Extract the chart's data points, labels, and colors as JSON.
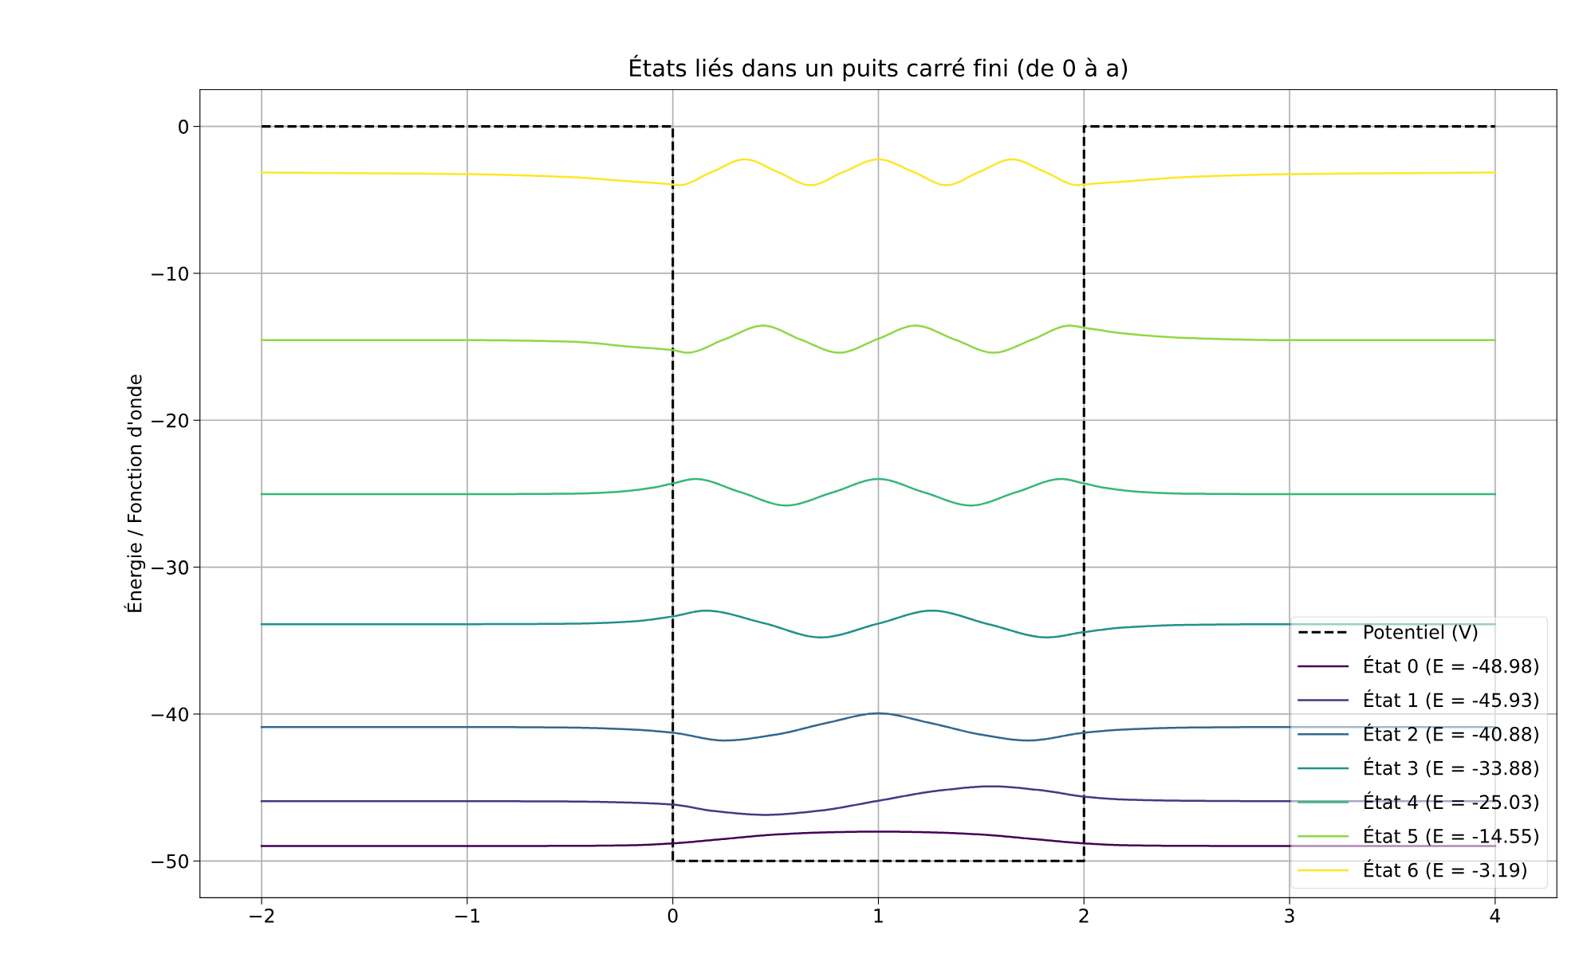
{
  "chart_data": {
    "type": "line",
    "title": "États liés dans un puits carré fini (de 0 à a)",
    "ylabel": "Énergie / Fonction d'onde",
    "xlim": [
      -2.3,
      4.3
    ],
    "xticks": [
      {
        "value": -2,
        "label": "−2"
      },
      {
        "value": -1,
        "label": "−1"
      },
      0,
      1,
      2,
      3,
      4
    ],
    "ylim": [
      -52.5,
      2.5
    ],
    "yticks": [
      {
        "value": -50,
        "label": "−50"
      },
      {
        "value": -40,
        "label": "−40"
      },
      {
        "value": -30,
        "label": "−30"
      },
      {
        "value": -20,
        "label": "−20"
      },
      {
        "value": -10,
        "label": "−10"
      },
      0
    ],
    "grid": true,
    "legend": "bottom right",
    "marker": "none",
    "series": [
      {
        "name": "Potentiel (V)",
        "color": "#000000",
        "line_style": "dashed",
        "x": [
          -2,
          0,
          0,
          2,
          2,
          4
        ],
        "values": [
          0,
          0,
          -50,
          -50,
          0,
          0
        ]
      },
      {
        "name": "État 0 (E = -48.98)",
        "color": "#440154",
        "line_style": "solid",
        "x": [
          -2,
          -1,
          -0.5,
          -0.2,
          0,
          0.25,
          0.5,
          0.75,
          1,
          1.25,
          1.5,
          1.75,
          2,
          2.2,
          2.5,
          3,
          4
        ],
        "values": [
          -48.98,
          -48.98,
          -48.97,
          -48.93,
          -48.8,
          -48.5,
          -48.2,
          -48.05,
          -48.0,
          -48.05,
          -48.2,
          -48.5,
          -48.8,
          -48.93,
          -48.97,
          -48.98,
          -48.98
        ]
      },
      {
        "name": "État 1 (E = -45.93)",
        "color": "#443983",
        "line_style": "solid",
        "x": [
          -2,
          -1,
          -0.5,
          -0.2,
          0,
          0.2,
          0.45,
          0.7,
          1,
          1.3,
          1.55,
          1.8,
          2,
          2.2,
          2.5,
          3,
          4
        ],
        "values": [
          -45.93,
          -45.93,
          -45.95,
          -46.03,
          -46.16,
          -46.6,
          -46.86,
          -46.6,
          -45.9,
          -45.2,
          -44.92,
          -45.2,
          -45.62,
          -45.82,
          -45.9,
          -45.93,
          -45.93
        ]
      },
      {
        "name": "État 2 (E = -40.88)",
        "color": "#31688e",
        "line_style": "solid",
        "x": [
          -2,
          -1,
          -0.5,
          -0.2,
          0,
          0.25,
          0.5,
          0.75,
          1,
          1.25,
          1.5,
          1.73,
          2,
          2.2,
          2.5,
          3,
          4
        ],
        "values": [
          -40.88,
          -40.88,
          -40.92,
          -41.05,
          -41.27,
          -41.8,
          -41.4,
          -40.6,
          -39.95,
          -40.6,
          -41.4,
          -41.8,
          -41.27,
          -41.05,
          -40.92,
          -40.88,
          -40.88
        ]
      },
      {
        "name": "État 3 (E = -33.88)",
        "color": "#21918c",
        "line_style": "solid",
        "x": [
          -2,
          -1,
          -0.5,
          -0.2,
          0,
          0.16,
          0.44,
          0.72,
          1,
          1.26,
          1.54,
          1.82,
          2,
          2.2,
          2.5,
          3,
          4
        ],
        "values": [
          -33.88,
          -33.88,
          -33.85,
          -33.7,
          -33.35,
          -32.96,
          -33.8,
          -34.78,
          -33.84,
          -32.96,
          -33.9,
          -34.78,
          -34.42,
          -34.1,
          -33.93,
          -33.88,
          -33.88
        ]
      },
      {
        "name": "État 4 (E = -25.03)",
        "color": "#35b779",
        "line_style": "solid",
        "x": [
          -2,
          -1,
          -0.5,
          -0.3,
          -0.1,
          0,
          0.11,
          0.33,
          0.55,
          0.78,
          1,
          1.22,
          1.45,
          1.67,
          1.89,
          2,
          2.1,
          2.3,
          2.5,
          3,
          4
        ],
        "values": [
          -25.03,
          -25.03,
          -25.0,
          -24.9,
          -24.6,
          -24.3,
          -24.0,
          -24.9,
          -25.8,
          -24.9,
          -24.0,
          -24.9,
          -25.8,
          -24.9,
          -24.0,
          -24.3,
          -24.6,
          -24.9,
          -25.0,
          -25.03,
          -25.03
        ]
      },
      {
        "name": "État 5 (E = -14.55)",
        "color": "#90d743",
        "line_style": "solid",
        "x": [
          -2,
          -1,
          -0.5,
          -0.2,
          0,
          0.07,
          0.25,
          0.44,
          0.62,
          0.81,
          1,
          1.18,
          1.37,
          1.56,
          1.75,
          1.93,
          2,
          2.2,
          2.5,
          3,
          4
        ],
        "values": [
          -14.55,
          -14.55,
          -14.65,
          -15.0,
          -15.23,
          -15.4,
          -14.5,
          -13.56,
          -14.5,
          -15.4,
          -14.45,
          -13.56,
          -14.5,
          -15.4,
          -14.5,
          -13.56,
          -13.7,
          -14.1,
          -14.4,
          -14.55,
          -14.55
        ]
      },
      {
        "name": "État 6 (E = -3.19)",
        "color": "#fde725",
        "line_style": "solid",
        "x": [
          -2,
          -1,
          -0.5,
          -0.2,
          0,
          0.03,
          0.19,
          0.35,
          0.51,
          0.67,
          0.83,
          1,
          1.17,
          1.33,
          1.49,
          1.65,
          1.81,
          1.97,
          2,
          2.2,
          2.5,
          3,
          4
        ],
        "values": [
          -3.14,
          -3.25,
          -3.45,
          -3.75,
          -3.95,
          -4.0,
          -3.1,
          -2.24,
          -3.1,
          -4.0,
          -3.1,
          -2.24,
          -3.1,
          -4.0,
          -3.1,
          -2.24,
          -3.1,
          -4.0,
          -3.95,
          -3.75,
          -3.45,
          -3.25,
          -3.14
        ]
      }
    ]
  }
}
